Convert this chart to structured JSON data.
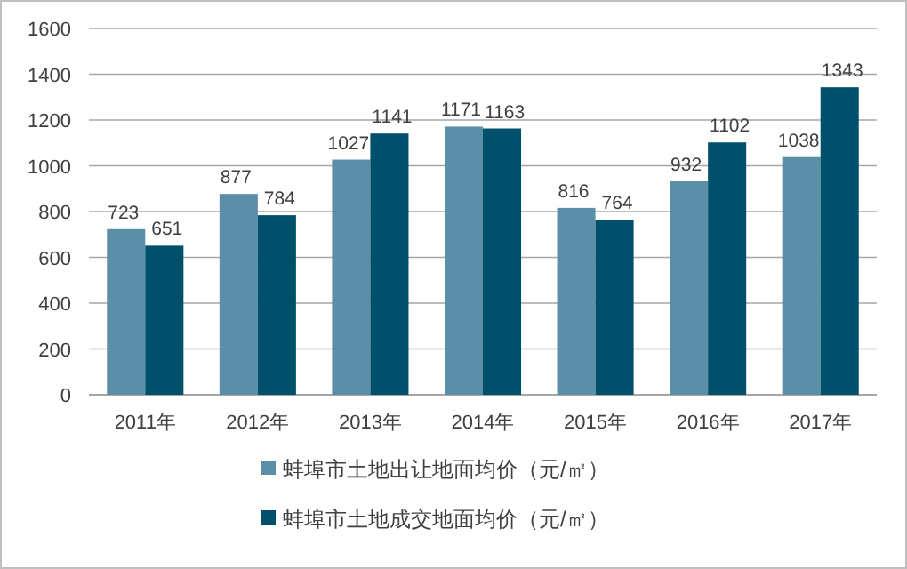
{
  "chart_data": {
    "type": "bar",
    "categories": [
      "2011年",
      "2012年",
      "2013年",
      "2014年",
      "2015年",
      "2016年",
      "2017年"
    ],
    "series": [
      {
        "name": "蚌埠市土地出让地面均价（元/㎡）",
        "color": "#5b8fa8",
        "values": [
          723,
          877,
          1027,
          1171,
          816,
          932,
          1038
        ]
      },
      {
        "name": "蚌埠市土地成交地面均价（元/㎡）",
        "color": "#00506b",
        "values": [
          651,
          784,
          1141,
          1163,
          764,
          1102,
          1343
        ]
      }
    ],
    "ylim": [
      0,
      1600
    ],
    "yticks": [
      0,
      200,
      400,
      600,
      800,
      1000,
      1200,
      1400,
      1600
    ],
    "grid": "y",
    "legend": "bottom",
    "data_labels": true
  }
}
